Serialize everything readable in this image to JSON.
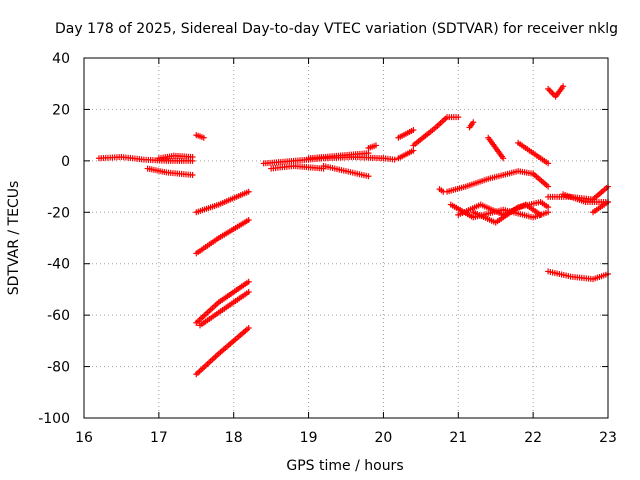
{
  "chart_data": {
    "type": "scatter",
    "title": "Day 178 of 2025, Sidereal Day-to-day VTEC variation (SDTVAR) for receiver nklg",
    "xlabel": "GPS time / hours",
    "ylabel": "SDTVAR / TECUs",
    "xlim": [
      16,
      23
    ],
    "ylim": [
      -100,
      40
    ],
    "xticks": [
      16,
      17,
      18,
      19,
      20,
      21,
      22,
      23
    ],
    "yticks": [
      -100,
      -80,
      -60,
      -40,
      -20,
      0,
      20,
      40
    ],
    "grid": true,
    "marker": "plus",
    "color": "#ff0000",
    "series": [
      {
        "name": "seg01",
        "x": [
          16.2,
          16.5,
          16.8,
          17.1,
          17.45
        ],
        "y": [
          1,
          1.5,
          0.5,
          0,
          0
        ]
      },
      {
        "name": "seg02",
        "x": [
          16.85,
          17.1,
          17.45
        ],
        "y": [
          -3,
          -4.5,
          -5.5
        ]
      },
      {
        "name": "seg03",
        "x": [
          17.0,
          17.2,
          17.45
        ],
        "y": [
          1,
          2,
          1.5
        ]
      },
      {
        "name": "seg04",
        "x": [
          17.5,
          17.6
        ],
        "y": [
          10,
          9
        ]
      },
      {
        "name": "seg05",
        "x": [
          17.5,
          17.8,
          18.2
        ],
        "y": [
          -20,
          -17,
          -12
        ]
      },
      {
        "name": "seg06",
        "x": [
          17.5,
          17.8,
          18.2
        ],
        "y": [
          -36,
          -30,
          -23
        ]
      },
      {
        "name": "seg07",
        "x": [
          17.5,
          17.8,
          18.2
        ],
        "y": [
          -63,
          -55,
          -47
        ]
      },
      {
        "name": "seg08",
        "x": [
          17.55,
          17.85,
          18.2
        ],
        "y": [
          -64,
          -58,
          -51
        ]
      },
      {
        "name": "seg09",
        "x": [
          17.5,
          17.8,
          18.2
        ],
        "y": [
          -83,
          -75,
          -65
        ]
      },
      {
        "name": "seg10",
        "x": [
          18.4,
          18.8,
          19.2,
          19.6,
          20.0
        ],
        "y": [
          -1,
          0,
          1,
          1.5,
          1
        ]
      },
      {
        "name": "seg11",
        "x": [
          18.5,
          18.8,
          19.2
        ],
        "y": [
          -3,
          -2,
          -3
        ]
      },
      {
        "name": "seg12",
        "x": [
          19.2,
          19.5,
          19.8
        ],
        "y": [
          -2,
          -4,
          -6
        ]
      },
      {
        "name": "seg13",
        "x": [
          19.0,
          19.4,
          19.8
        ],
        "y": [
          1,
          2,
          3
        ]
      },
      {
        "name": "seg14",
        "x": [
          19.8,
          19.9
        ],
        "y": [
          5,
          6
        ]
      },
      {
        "name": "seg15",
        "x": [
          20.0,
          20.15
        ],
        "y": [
          1,
          0.5
        ]
      },
      {
        "name": "seg16",
        "x": [
          20.2,
          20.4
        ],
        "y": [
          1,
          4
        ]
      },
      {
        "name": "seg17",
        "x": [
          20.2,
          20.4
        ],
        "y": [
          9,
          12
        ]
      },
      {
        "name": "seg18",
        "x": [
          20.4,
          20.7,
          20.85,
          21.0
        ],
        "y": [
          6,
          13,
          17,
          17
        ]
      },
      {
        "name": "seg19",
        "x": [
          21.15,
          21.2
        ],
        "y": [
          13,
          15
        ]
      },
      {
        "name": "seg20",
        "x": [
          20.75,
          20.8
        ],
        "y": [
          -11,
          -12
        ]
      },
      {
        "name": "seg21",
        "x": [
          20.85,
          21.1,
          21.4,
          21.8,
          22.0
        ],
        "y": [
          -12,
          -10,
          -7,
          -4,
          -5
        ]
      },
      {
        "name": "seg22",
        "x": [
          20.9,
          21.2,
          21.6,
          22.0,
          22.2
        ],
        "y": [
          -17,
          -22,
          -19,
          -22,
          -20
        ]
      },
      {
        "name": "seg23",
        "x": [
          21.0,
          21.3,
          21.6,
          21.9,
          22.1
        ],
        "y": [
          -21,
          -17,
          -21,
          -17,
          -21
        ]
      },
      {
        "name": "seg24",
        "x": [
          21.2,
          21.5,
          21.8,
          22.1,
          22.2
        ],
        "y": [
          -20,
          -24,
          -18,
          -16,
          -18
        ]
      },
      {
        "name": "seg25",
        "x": [
          21.4,
          21.6
        ],
        "y": [
          9,
          1
        ]
      },
      {
        "name": "seg26",
        "x": [
          21.8,
          22.0,
          22.2
        ],
        "y": [
          7,
          3,
          -1
        ]
      },
      {
        "name": "seg27",
        "x": [
          22.0,
          22.2
        ],
        "y": [
          -5,
          -10
        ]
      },
      {
        "name": "seg28",
        "x": [
          22.2,
          22.3,
          22.4
        ],
        "y": [
          28,
          25,
          29
        ]
      },
      {
        "name": "seg29",
        "x": [
          22.2,
          22.5,
          22.8,
          23.0
        ],
        "y": [
          -14,
          -14,
          -15,
          -10
        ]
      },
      {
        "name": "seg30",
        "x": [
          22.4,
          22.7,
          23.0
        ],
        "y": [
          -13,
          -16,
          -16
        ]
      },
      {
        "name": "seg31",
        "x": [
          22.8,
          22.9,
          23.0
        ],
        "y": [
          -20,
          -18,
          -16
        ]
      },
      {
        "name": "seg32",
        "x": [
          22.2,
          22.5,
          22.8,
          23.0
        ],
        "y": [
          -43,
          -45,
          -46,
          -44
        ]
      }
    ]
  }
}
